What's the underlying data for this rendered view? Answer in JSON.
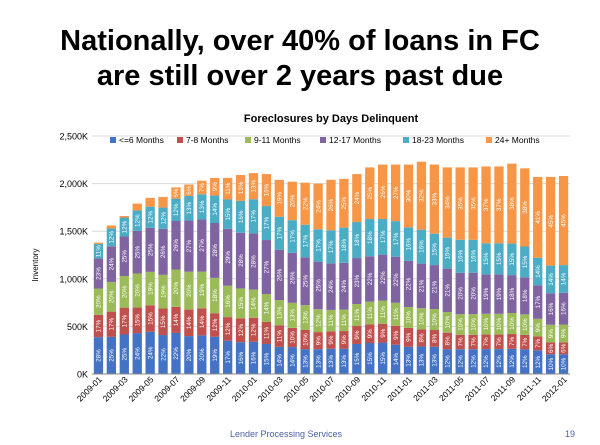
{
  "slide": {
    "title_line1": "Nationally, over 40% of loans in FC",
    "title_line2": "are still over 2 years past due",
    "footer": "Lender Processing Services",
    "page_number": "19"
  },
  "chart_data": {
    "type": "bar",
    "stacked": true,
    "title": "Foreclosures by Days Delinquent",
    "xlabel": "",
    "ylabel": "Inventory",
    "ylim": [
      0,
      2500
    ],
    "y_ticks": [
      0,
      500,
      1000,
      1500,
      2000,
      2500
    ],
    "y_tick_labels": [
      "0K",
      "500K",
      "1,000K",
      "1,500K",
      "2,000K",
      "2,500K"
    ],
    "grid": true,
    "legend_position": "top",
    "categories": [
      "2009-01",
      "2009-02",
      "2009-03",
      "2009-04",
      "2009-05",
      "2009-06",
      "2009-07",
      "2009-08",
      "2009-09",
      "2009-10",
      "2009-11",
      "2009-12",
      "2010-01",
      "2010-02",
      "2010-03",
      "2010-04",
      "2010-05",
      "2010-06",
      "2010-07",
      "2010-08",
      "2010-09",
      "2010-10",
      "2010-11",
      "2010-12",
      "2011-01",
      "2011-02",
      "2011-03",
      "2011-04",
      "2011-05",
      "2011-06",
      "2011-07",
      "2011-08",
      "2011-09",
      "2011-10",
      "2011-11",
      "2011-12",
      "2012-01"
    ],
    "tick_labels": [
      "2009-01",
      "",
      "2009-03",
      "",
      "2009-05",
      "",
      "2009-07",
      "",
      "2009-09",
      "",
      "2009-11",
      "",
      "2010-01",
      "",
      "2010-03",
      "",
      "2010-05",
      "",
      "2010-07",
      "",
      "2010-09",
      "",
      "2010-11",
      "",
      "2011-01",
      "",
      "2011-03",
      "",
      "2011-05",
      "",
      "2011-07",
      "",
      "2011-09",
      "",
      "2011-11",
      "",
      "2012-01"
    ],
    "totals": [
      1380,
      1560,
      1660,
      1790,
      1850,
      1860,
      1960,
      1990,
      2030,
      2060,
      2060,
      2090,
      2110,
      2100,
      2040,
      2020,
      2010,
      2000,
      2040,
      2050,
      2100,
      2170,
      2200,
      2200,
      2200,
      2230,
      2200,
      2170,
      2170,
      2170,
      2180,
      2180,
      2210,
      2160,
      2070,
      2070,
      2080
    ],
    "series": [
      {
        "name": "<=6 Months",
        "color": "#4472c4",
        "pct": [
          28,
          25,
          25,
          24,
          24,
          22,
          22,
          20,
          20,
          19,
          17,
          16,
          16,
          15,
          14,
          14,
          13,
          13,
          13,
          13,
          15,
          15,
          15,
          14,
          13,
          13,
          13,
          12,
          12,
          12,
          12,
          12,
          12,
          12,
          12,
          10,
          10
        ]
      },
      {
        "name": "7-8 Months",
        "color": "#c0504d",
        "pct": [
          17,
          17,
          17,
          15,
          15,
          15,
          14,
          14,
          14,
          12,
          12,
          12,
          12,
          11,
          11,
          10,
          10,
          9,
          9,
          9,
          9,
          9,
          9,
          9,
          9,
          8,
          8,
          8,
          7,
          7,
          7,
          7,
          7,
          7,
          7,
          6,
          6
        ]
      },
      {
        "name": "9-11 Months",
        "color": "#9bbb59",
        "pct": [
          20,
          20,
          20,
          20,
          19,
          19,
          20,
          20,
          19,
          18,
          16,
          15,
          14,
          14,
          13,
          13,
          13,
          12,
          11,
          11,
          11,
          11,
          11,
          11,
          10,
          10,
          10,
          10,
          10,
          10,
          10,
          10,
          10,
          10,
          9,
          9,
          9
        ]
      },
      {
        "name": "12-17 Months",
        "color": "#8064a2",
        "pct": [
          23,
          24,
          25,
          25,
          25,
          26,
          26,
          27,
          27,
          28,
          29,
          28,
          28,
          27,
          26,
          26,
          25,
          25,
          24,
          24,
          23,
          22,
          22,
          22,
          22,
          21,
          21,
          21,
          20,
          20,
          19,
          19,
          18,
          18,
          17,
          16,
          16
        ]
      },
      {
        "name": "18-23 Months",
        "color": "#4bacc6",
        "pct": [
          11,
          12,
          12,
          12,
          12,
          12,
          12,
          13,
          13,
          14,
          15,
          16,
          17,
          17,
          17,
          17,
          17,
          17,
          17,
          18,
          18,
          18,
          17,
          17,
          16,
          16,
          15,
          15,
          16,
          16,
          15,
          15,
          15,
          15,
          14,
          14,
          14
        ]
      },
      {
        "name": "24+ Months",
        "color": "#f79646",
        "pct": [
          1,
          2,
          1,
          4,
          5,
          6,
          6,
          6,
          7,
          9,
          11,
          13,
          13,
          16,
          19,
          20,
          22,
          24,
          26,
          25,
          24,
          25,
          26,
          27,
          30,
          32,
          33,
          34,
          35,
          35,
          37,
          37,
          38,
          38,
          41,
          45,
          45
        ]
      }
    ],
    "bar_label_color": "#ffffff"
  }
}
